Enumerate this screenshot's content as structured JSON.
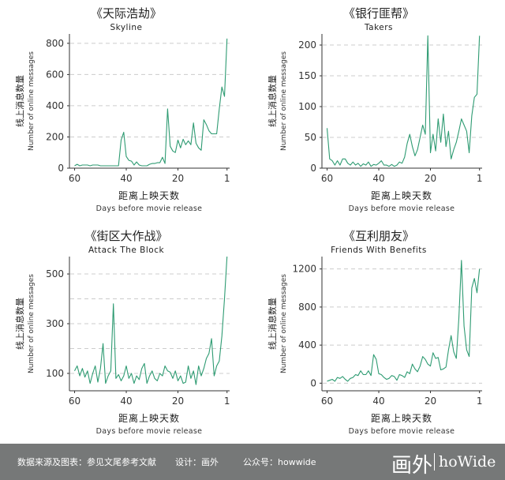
{
  "colors": {
    "line": "#2e9b72",
    "axis": "#333333",
    "grid": "#cccccc",
    "footer_bg": "#767878"
  },
  "chart_data": [
    {
      "type": "line",
      "title": "《天际浩劫》",
      "subtitle": "Skyline",
      "ylabel_cn": "线上消息数量",
      "ylabel_en": "Number of online messages",
      "xlabel_cn": "距离上映天数",
      "xlabel_en": "Days before movie release",
      "xlim": [
        62,
        0
      ],
      "ylim": [
        0,
        860
      ],
      "yticks": [
        0,
        200,
        400,
        600,
        800
      ],
      "xticks": [
        60,
        40,
        20,
        1
      ],
      "grid_y": [
        200,
        400,
        600,
        800
      ],
      "x": [
        60,
        59,
        58,
        57,
        56,
        55,
        54,
        53,
        52,
        51,
        50,
        49,
        48,
        47,
        46,
        45,
        44,
        43,
        42,
        41,
        40,
        39,
        38,
        37,
        36,
        35,
        34,
        33,
        32,
        31,
        30,
        29,
        28,
        27,
        26,
        25,
        24,
        23,
        22,
        21,
        20,
        19,
        18,
        17,
        16,
        15,
        14,
        13,
        12,
        11,
        10,
        9,
        8,
        7,
        6,
        5,
        4,
        3,
        2,
        1
      ],
      "values": [
        15,
        25,
        15,
        20,
        20,
        20,
        15,
        20,
        20,
        20,
        15,
        15,
        15,
        15,
        15,
        15,
        15,
        15,
        180,
        230,
        75,
        50,
        45,
        20,
        40,
        20,
        15,
        15,
        15,
        25,
        30,
        30,
        35,
        35,
        70,
        30,
        380,
        140,
        110,
        100,
        180,
        130,
        185,
        150,
        175,
        150,
        290,
        160,
        130,
        115,
        310,
        280,
        240,
        220,
        220,
        220,
        380,
        520,
        460,
        830
      ]
    },
    {
      "type": "line",
      "title": "《银行匪帮》",
      "subtitle": "Takers",
      "ylabel_cn": "线上消息数量",
      "ylabel_en": "Number of online messages",
      "xlabel_cn": "距离上映天数",
      "xlabel_en": "Days before movie release",
      "xlim": [
        62,
        0
      ],
      "ylim": [
        0,
        218
      ],
      "yticks": [
        0,
        50,
        100,
        150,
        200
      ],
      "xticks": [
        60,
        40,
        20,
        1
      ],
      "grid_y": [
        50,
        100,
        150,
        200
      ],
      "x": [
        60,
        59,
        58,
        57,
        56,
        55,
        54,
        53,
        52,
        51,
        50,
        49,
        48,
        47,
        46,
        45,
        44,
        43,
        42,
        41,
        40,
        39,
        38,
        37,
        36,
        35,
        34,
        33,
        32,
        31,
        30,
        29,
        28,
        27,
        26,
        25,
        24,
        23,
        22,
        21,
        20,
        19,
        18,
        17,
        16,
        15,
        14,
        13,
        12,
        11,
        10,
        9,
        8,
        7,
        6,
        5,
        4,
        3,
        2,
        1
      ],
      "values": [
        65,
        15,
        12,
        5,
        12,
        5,
        15,
        15,
        8,
        5,
        10,
        5,
        8,
        3,
        7,
        5,
        10,
        3,
        6,
        5,
        8,
        12,
        5,
        5,
        3,
        6,
        3,
        5,
        10,
        8,
        18,
        40,
        55,
        35,
        20,
        30,
        50,
        70,
        55,
        215,
        25,
        55,
        28,
        80,
        42,
        88,
        35,
        60,
        15,
        30,
        42,
        60,
        80,
        70,
        60,
        25,
        85,
        115,
        120,
        215
      ]
    },
    {
      "type": "line",
      "title": "《街区大作战》",
      "subtitle": "Attack The Block",
      "ylabel_cn": "线上消息数量",
      "ylabel_en": "Number of online messages",
      "xlabel_cn": "距离上映天数",
      "xlabel_en": "Days before movie release",
      "xlim": [
        62,
        0
      ],
      "ylim": [
        30,
        570
      ],
      "yticks": [
        100,
        300,
        500
      ],
      "xticks": [
        60,
        40,
        20,
        1
      ],
      "grid_y": [
        100,
        200,
        300,
        400,
        500
      ],
      "x": [
        60,
        59,
        58,
        57,
        56,
        55,
        54,
        53,
        52,
        51,
        50,
        49,
        48,
        47,
        46,
        45,
        44,
        43,
        42,
        41,
        40,
        39,
        38,
        37,
        36,
        35,
        34,
        33,
        32,
        31,
        30,
        29,
        28,
        27,
        26,
        25,
        24,
        23,
        22,
        21,
        20,
        19,
        18,
        17,
        16,
        15,
        14,
        13,
        12,
        11,
        10,
        9,
        8,
        7,
        6,
        5,
        4,
        3,
        2,
        1
      ],
      "values": [
        110,
        130,
        90,
        120,
        85,
        110,
        60,
        100,
        130,
        65,
        120,
        220,
        60,
        90,
        110,
        380,
        80,
        95,
        70,
        90,
        130,
        80,
        100,
        60,
        90,
        75,
        120,
        140,
        60,
        90,
        110,
        80,
        70,
        100,
        90,
        130,
        110,
        105,
        80,
        110,
        70,
        90,
        60,
        65,
        130,
        80,
        110,
        55,
        130,
        90,
        120,
        160,
        180,
        240,
        90,
        130,
        150,
        250,
        400,
        570
      ]
    },
    {
      "type": "line",
      "title": "《互利朋友》",
      "subtitle": "Friends With Benefits",
      "ylabel_cn": "线上消息数量",
      "ylabel_en": "Number of online messages",
      "xlabel_cn": "距离上映天数",
      "xlabel_en": "Days before movie release",
      "xlim": [
        62,
        0
      ],
      "ylim": [
        -80,
        1330
      ],
      "yticks": [
        0,
        400,
        800,
        1200
      ],
      "xticks": [
        60,
        40,
        20,
        1
      ],
      "grid_y": [
        0,
        400,
        800,
        1200
      ],
      "x": [
        60,
        59,
        58,
        57,
        56,
        55,
        54,
        53,
        52,
        51,
        50,
        49,
        48,
        47,
        46,
        45,
        44,
        43,
        42,
        41,
        40,
        39,
        38,
        37,
        36,
        35,
        34,
        33,
        32,
        31,
        30,
        29,
        28,
        27,
        26,
        25,
        24,
        23,
        22,
        21,
        20,
        19,
        18,
        17,
        16,
        15,
        14,
        13,
        12,
        11,
        10,
        9,
        8,
        7,
        6,
        5,
        4,
        3,
        2,
        1
      ],
      "values": [
        20,
        30,
        40,
        20,
        60,
        50,
        70,
        40,
        20,
        50,
        60,
        90,
        80,
        130,
        90,
        90,
        130,
        80,
        300,
        250,
        100,
        90,
        60,
        40,
        50,
        80,
        70,
        30,
        90,
        80,
        60,
        120,
        100,
        200,
        150,
        120,
        180,
        280,
        250,
        200,
        180,
        320,
        260,
        270,
        140,
        150,
        170,
        350,
        500,
        330,
        260,
        680,
        1290,
        600,
        350,
        280,
        1000,
        1100,
        950,
        1200
      ]
    }
  ],
  "footer": {
    "source": "数据来源及图表：参见文尾参考文献",
    "design": "设计：画外",
    "official": "公众号：howwide",
    "brand_cn": "画外",
    "brand_en": "hoWide"
  }
}
